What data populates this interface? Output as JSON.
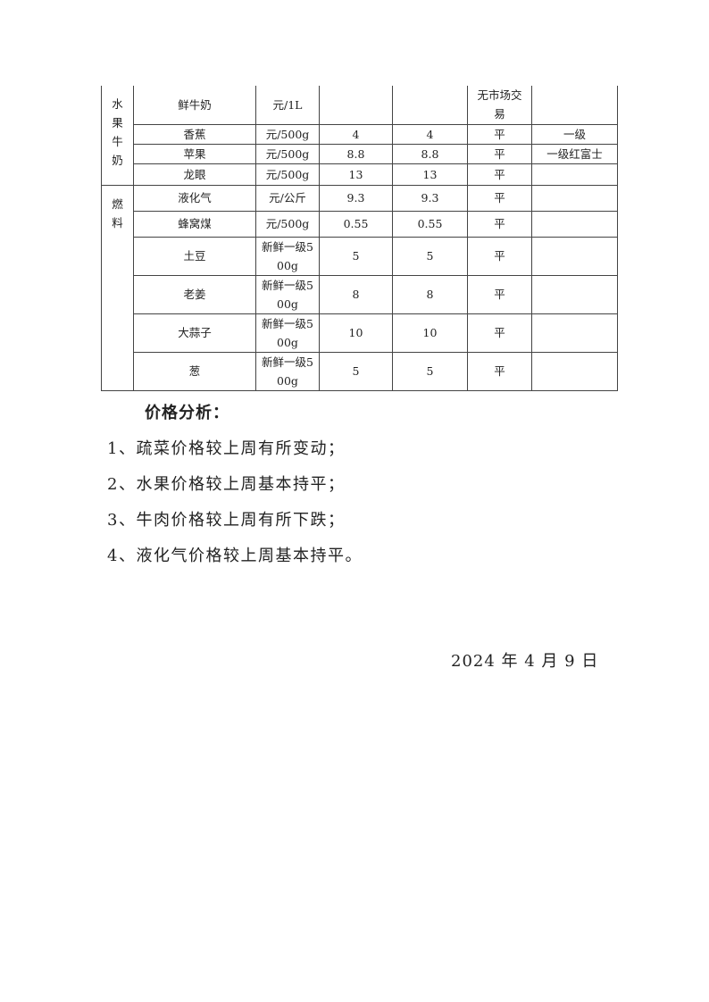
{
  "table": {
    "groups": [
      {
        "category": "水果牛奶",
        "rows": [
          {
            "item": "鲜牛奶",
            "unit": "元/1L",
            "prev": "",
            "curr": "",
            "trend": "无市场交易",
            "note": ""
          },
          {
            "item": "香蕉",
            "unit": "元/500g",
            "prev": "4",
            "curr": "4",
            "trend": "平",
            "note": "一级"
          },
          {
            "item": "苹果",
            "unit": "元/500g",
            "prev": "8.8",
            "curr": "8.8",
            "trend": "平",
            "note": "一级红富士"
          },
          {
            "item": "龙眼",
            "unit": "元/500g",
            "prev": "13",
            "curr": "13",
            "trend": "平",
            "note": ""
          }
        ]
      },
      {
        "category": "燃料",
        "rows": [
          {
            "item": "液化气",
            "unit": "元/公斤",
            "prev": "9.3",
            "curr": "9.3",
            "trend": "平",
            "note": ""
          },
          {
            "item": "蜂窝煤",
            "unit": "元/500g",
            "prev": "0.55",
            "curr": "0.55",
            "trend": "平",
            "note": ""
          },
          {
            "item": "土豆",
            "unit": "新鲜一级500g",
            "prev": "5",
            "curr": "5",
            "trend": "平",
            "note": ""
          },
          {
            "item": "老姜",
            "unit": "新鲜一级500g",
            "prev": "8",
            "curr": "8",
            "trend": "平",
            "note": ""
          },
          {
            "item": "大蒜子",
            "unit": "新鲜一级500g",
            "prev": "10",
            "curr": "10",
            "trend": "平",
            "note": ""
          },
          {
            "item": "葱",
            "unit": "新鲜一级500g",
            "prev": "5",
            "curr": "5",
            "trend": "平",
            "note": ""
          }
        ]
      }
    ]
  },
  "analysis": {
    "title": "价格分析：",
    "items": [
      "1、疏菜价格较上周有所变动；",
      "2、水果价格较上周基本持平；",
      "3、牛肉价格较上周有所下跌；",
      "4、液化气价格较上周基本持平。"
    ]
  },
  "date": "2024 年 4 月 9 日"
}
